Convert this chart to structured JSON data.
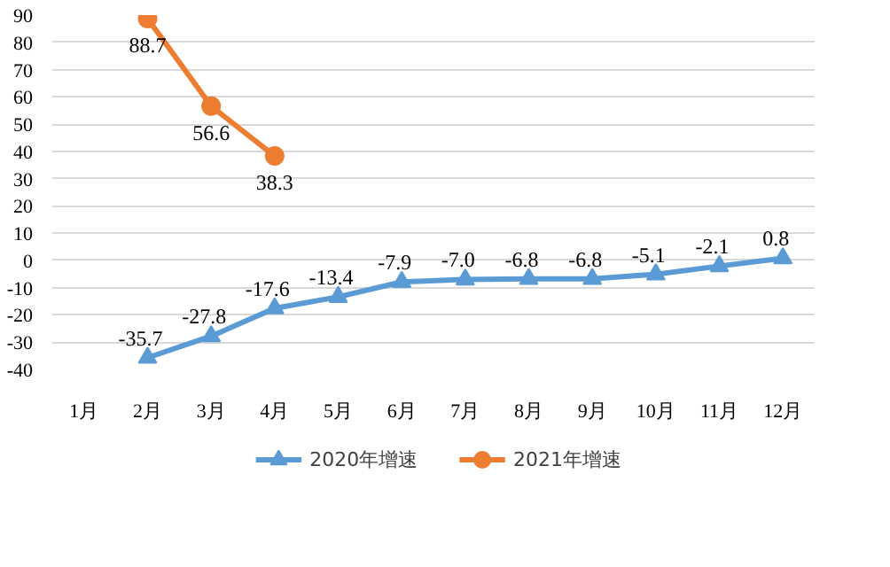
{
  "chart_data": {
    "type": "line",
    "categories": [
      "1月",
      "2月",
      "3月",
      "4月",
      "5月",
      "6月",
      "7月",
      "8月",
      "9月",
      "10月",
      "11月",
      "12月"
    ],
    "series": [
      {
        "name": "2020年增速",
        "color": "#5b9bd5",
        "marker": "triangle",
        "values": [
          null,
          -35.7,
          -27.8,
          -17.6,
          -13.4,
          -7.9,
          -7.0,
          -6.8,
          -6.8,
          -5.1,
          -2.1,
          0.8
        ],
        "value_labels": [
          null,
          "-35.7",
          "-27.8",
          "-17.6",
          "-13.4",
          "-7.9",
          "-7.0",
          "-6.8",
          "-6.8",
          "-5.1",
          "-2.1",
          "0.8"
        ]
      },
      {
        "name": "2021年增速",
        "color": "#ed7d31",
        "marker": "circle",
        "values": [
          null,
          88.7,
          56.6,
          38.3,
          null,
          null,
          null,
          null,
          null,
          null,
          null,
          null
        ],
        "value_labels": [
          null,
          "88.7",
          "56.6",
          "38.3",
          null,
          null,
          null,
          null,
          null,
          null,
          null,
          null
        ]
      }
    ],
    "ylim": [
      -40,
      90
    ],
    "yticks": [
      -40,
      -30,
      -20,
      -10,
      0,
      10,
      20,
      30,
      40,
      50,
      60,
      70,
      80,
      90
    ],
    "grid": "y",
    "legend": "bottom"
  }
}
